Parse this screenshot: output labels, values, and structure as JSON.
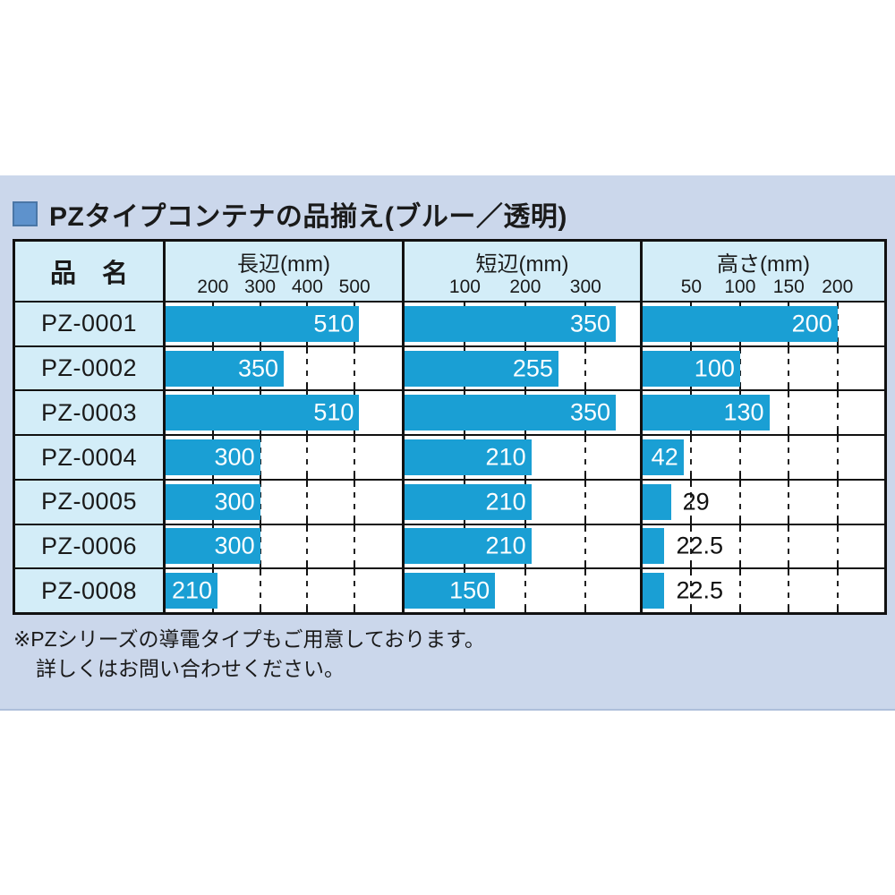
{
  "title": {
    "text": "PZタイプコンテナの品揃え(ブルー／透明)"
  },
  "table": {
    "name_header": "品　名"
  },
  "footnote": {
    "line1": "※PZシリーズの導電タイプもご用意しております。",
    "line2": "詳しくはお問い合わせください。"
  },
  "colors": {
    "bar": "#1a9fd4",
    "cell_bg": "#d3edf8",
    "panel_bg": "#cbd7eb",
    "bullet": "#5e92cc",
    "border": "#111111",
    "label_inside": "#ffffff",
    "label_outside": "#111111"
  },
  "chart_data": {
    "type": "bar",
    "orientation": "horizontal",
    "title": "PZタイプコンテナの品揃え(ブルー／透明)",
    "categories": [
      "PZ-0001",
      "PZ-0002",
      "PZ-0003",
      "PZ-0004",
      "PZ-0005",
      "PZ-0006",
      "PZ-0008"
    ],
    "series": [
      {
        "name": "長辺(mm)",
        "ticks": [
          200,
          300,
          400,
          500
        ],
        "axis_range": [
          100,
          600
        ],
        "values": [
          510,
          350,
          510,
          300,
          300,
          300,
          210
        ]
      },
      {
        "name": "短辺(mm)",
        "ticks": [
          100,
          200,
          300
        ],
        "axis_range": [
          0,
          390
        ],
        "values": [
          350,
          255,
          350,
          210,
          210,
          210,
          150
        ]
      },
      {
        "name": "高さ(mm)",
        "ticks": [
          50,
          100,
          150,
          200
        ],
        "axis_range": [
          0,
          248
        ],
        "values": [
          200,
          100,
          130,
          42,
          29,
          22.5,
          22.5
        ]
      }
    ],
    "grid": "dashed-vertical",
    "legend": "none"
  }
}
